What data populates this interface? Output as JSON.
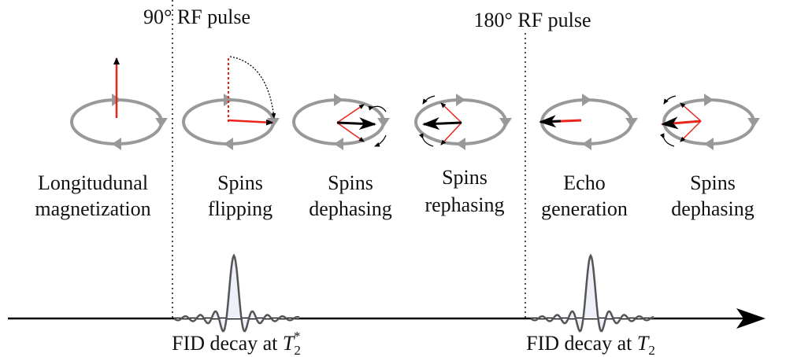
{
  "pulses": [
    "90° RF pulse",
    "180° RF pulse"
  ],
  "stages": [
    {
      "lines": [
        "Longitudunal",
        "magnetization"
      ]
    },
    {
      "lines": [
        "Spins",
        "flipping"
      ]
    },
    {
      "lines": [
        "Spins",
        "dephasing"
      ]
    },
    {
      "lines": [
        "Spins",
        "rephasing"
      ]
    },
    {
      "lines": [
        "Echo",
        "generation"
      ]
    },
    {
      "lines": [
        "Spins",
        "dephasing"
      ]
    }
  ],
  "fid_labels": [
    {
      "text": "FID decay at",
      "symbol": "T",
      "subscript": "2",
      "superscript": "*"
    },
    {
      "text": "FID decay at",
      "symbol": "T",
      "subscript": "2"
    }
  ]
}
